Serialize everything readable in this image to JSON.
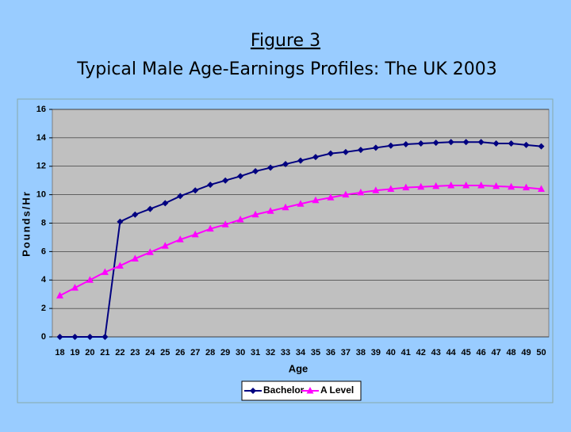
{
  "chart_data": {
    "type": "line",
    "title": "Figure 3",
    "subtitle": "Typical Male Age-Earnings Profiles: The UK 2003",
    "x_label": "Age",
    "y_label": "Pounds/Hr",
    "categories": [
      "18",
      "19",
      "20",
      "21",
      "22",
      "23",
      "24",
      "25",
      "26",
      "27",
      "28",
      "29",
      "30",
      "31",
      "32",
      "33",
      "34",
      "35",
      "36",
      "37",
      "38",
      "39",
      "40",
      "41",
      "42",
      "43",
      "44",
      "45",
      "46",
      "47",
      "48",
      "49",
      "50"
    ],
    "series": [
      {
        "name": "Bachelor",
        "color": "#000080",
        "marker": "diamond",
        "values": [
          0,
          0,
          0,
          0,
          8.1,
          8.6,
          9.0,
          9.4,
          9.9,
          10.3,
          10.7,
          11.0,
          11.3,
          11.65,
          11.9,
          12.15,
          12.4,
          12.65,
          12.9,
          13.0,
          13.15,
          13.3,
          13.45,
          13.55,
          13.6,
          13.65,
          13.7,
          13.7,
          13.7,
          13.6,
          13.6,
          13.5,
          13.4
        ]
      },
      {
        "name": "A Level",
        "color": "#ff00ff",
        "marker": "triangle",
        "values": [
          2.9,
          3.45,
          4.0,
          4.55,
          5.0,
          5.5,
          5.95,
          6.4,
          6.85,
          7.2,
          7.6,
          7.9,
          8.25,
          8.6,
          8.85,
          9.1,
          9.35,
          9.6,
          9.8,
          10.0,
          10.15,
          10.3,
          10.4,
          10.5,
          10.55,
          10.6,
          10.65,
          10.65,
          10.65,
          10.6,
          10.55,
          10.5,
          10.4
        ]
      }
    ],
    "ylim": [
      0,
      16
    ],
    "yticks": [
      0,
      2,
      4,
      6,
      8,
      10,
      12,
      14,
      16
    ],
    "grid": true,
    "legend": "bottom"
  }
}
